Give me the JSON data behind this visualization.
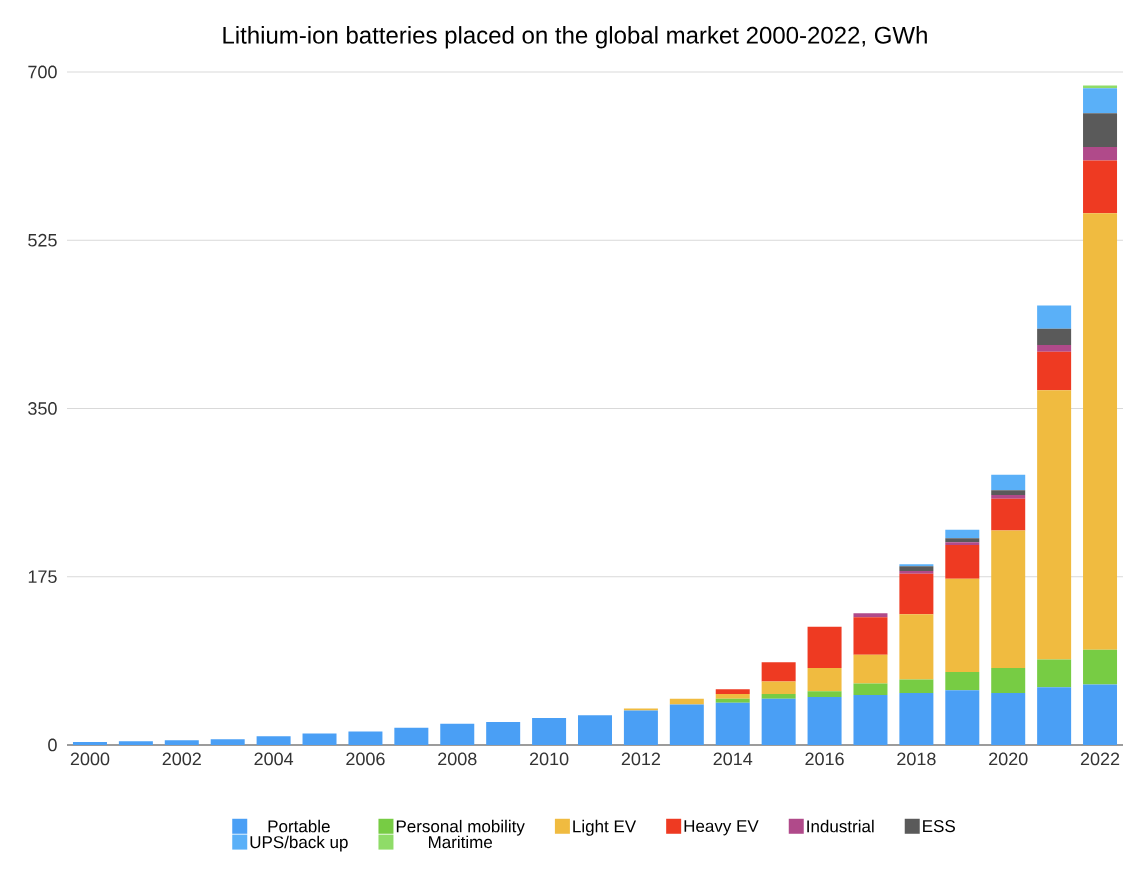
{
  "chart_data": {
    "type": "bar",
    "stacked": true,
    "title": "Lithium-ion batteries placed on the global market 2000-2022, GWh",
    "categories": [
      "2000",
      null,
      "2002",
      null,
      "2004",
      null,
      "2006",
      null,
      "2008",
      null,
      "2010",
      null,
      "2012",
      null,
      "2014",
      null,
      "2016",
      null,
      "2018",
      null,
      "2020",
      null,
      "2022"
    ],
    "ylim": [
      0,
      700
    ],
    "yticks": [
      0,
      175,
      350,
      525,
      700
    ],
    "grid": "y",
    "legend": "bottom",
    "series": [
      {
        "name": "Portable",
        "color": "#4a9ff5",
        "values": [
          3,
          4,
          5,
          6,
          9,
          12,
          14,
          18,
          22,
          24,
          28,
          31,
          36,
          42,
          44,
          48,
          50,
          52,
          54,
          57,
          54,
          60,
          63
        ]
      },
      {
        "name": "Personal mobility",
        "color": "#77cc44",
        "values": [
          null,
          null,
          null,
          null,
          null,
          null,
          null,
          null,
          null,
          null,
          null,
          null,
          null,
          null,
          4,
          5,
          6,
          12,
          14,
          19,
          26,
          29,
          36
        ]
      },
      {
        "name": "Light EV",
        "color": "#f0bb40",
        "values": [
          null,
          null,
          null,
          null,
          null,
          null,
          null,
          null,
          null,
          null,
          null,
          null,
          2,
          6,
          5,
          13,
          24,
          30,
          68,
          97,
          143,
          280,
          454
        ]
      },
      {
        "name": "Heavy EV",
        "color": "#ee3a22",
        "values": [
          null,
          null,
          null,
          null,
          null,
          null,
          null,
          null,
          null,
          null,
          null,
          null,
          null,
          null,
          5,
          20,
          43,
          39,
          42,
          35,
          33,
          40,
          55
        ]
      },
      {
        "name": "Industrial",
        "color": "#b04a8a",
        "values": [
          null,
          null,
          null,
          null,
          null,
          null,
          null,
          null,
          null,
          null,
          null,
          null,
          null,
          null,
          null,
          null,
          null,
          4,
          3,
          3,
          4,
          7,
          14
        ]
      },
      {
        "name": "ESS",
        "color": "#5a5a5a",
        "values": [
          null,
          null,
          null,
          null,
          null,
          null,
          null,
          null,
          null,
          null,
          null,
          null,
          null,
          null,
          null,
          null,
          null,
          null,
          5,
          4,
          5,
          17,
          35
        ]
      },
      {
        "name": "UPS/back up",
        "color": "#5ab0f8",
        "values": [
          null,
          null,
          null,
          null,
          null,
          null,
          null,
          null,
          null,
          null,
          null,
          null,
          null,
          null,
          null,
          null,
          null,
          null,
          2,
          9,
          16,
          24,
          26
        ]
      },
      {
        "name": "Maritime",
        "color": "#8fdc68",
        "values": [
          null,
          null,
          null,
          null,
          null,
          null,
          null,
          null,
          null,
          null,
          null,
          null,
          null,
          null,
          null,
          null,
          null,
          null,
          null,
          null,
          null,
          null,
          3
        ]
      }
    ]
  }
}
